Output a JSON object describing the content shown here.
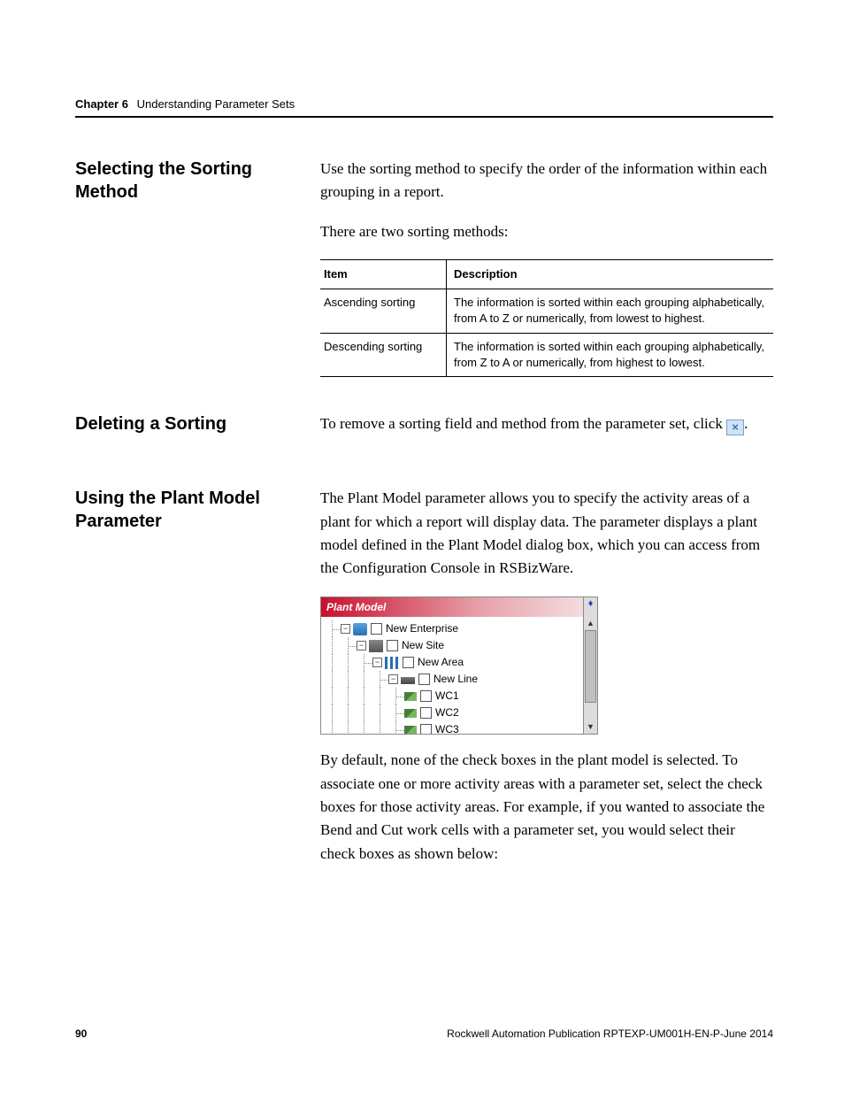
{
  "header": {
    "chapter_number": "Chapter 6",
    "chapter_title": "Understanding Parameter Sets"
  },
  "sections": {
    "sorting_method": {
      "heading": "Selecting the Sorting Method",
      "para1": "Use the sorting method to specify the order of the information within each grouping in a report.",
      "para2": "There are two sorting methods:"
    },
    "sorting_table": {
      "columns": [
        "Item",
        "Description"
      ],
      "rows": [
        [
          "Ascending sorting",
          "The information is sorted within each grouping alphabetically, from A to Z or numerically, from lowest to highest."
        ],
        [
          "Descending sorting",
          "The information is sorted within each grouping alphabetically, from Z to A or numerically, from highest to lowest."
        ]
      ]
    },
    "deleting": {
      "heading": "Deleting a Sorting",
      "para_pre": "To remove a sorting field and method from the parameter set, click ",
      "icon_label": "×",
      "para_post": "."
    },
    "plant_model": {
      "heading": "Using the Plant Model Parameter",
      "para1": "The Plant Model parameter allows you to specify the activity areas of a plant for which a report will display data. The parameter displays a plant model defined in the Plant Model dialog box, which you can access from the Configuration Console in RSBizWare.",
      "para2": "By default, none of the check boxes in the plant model is selected. To associate one or more activity areas with a parameter set, select the check boxes for those activity areas. For example, if you wanted to associate the Bend and Cut work cells with a parameter set, you would select their check boxes as shown below:"
    },
    "plant_model_widget": {
      "title": "Plant Model",
      "toggle_glyph": "♦",
      "scroll_up_glyph": "▲",
      "scroll_down_glyph": "▼",
      "nodes": [
        {
          "depth": 0,
          "expand": "−",
          "icon": "enterprise",
          "label": "New Enterprise"
        },
        {
          "depth": 1,
          "expand": "−",
          "icon": "site",
          "label": "New Site"
        },
        {
          "depth": 2,
          "expand": "−",
          "icon": "area",
          "label": "New Area"
        },
        {
          "depth": 3,
          "expand": "−",
          "icon": "line",
          "label": "New Line"
        },
        {
          "depth": 4,
          "expand": "",
          "icon": "wc",
          "label": "WC1"
        },
        {
          "depth": 4,
          "expand": "",
          "icon": "wc",
          "label": "WC2"
        },
        {
          "depth": 4,
          "expand": "",
          "icon": "wc",
          "label": "WC3"
        }
      ]
    }
  },
  "footer": {
    "page": "90",
    "pubref": "Rockwell Automation Publication RPTEXP-UM001H-EN-P-June 2014"
  }
}
